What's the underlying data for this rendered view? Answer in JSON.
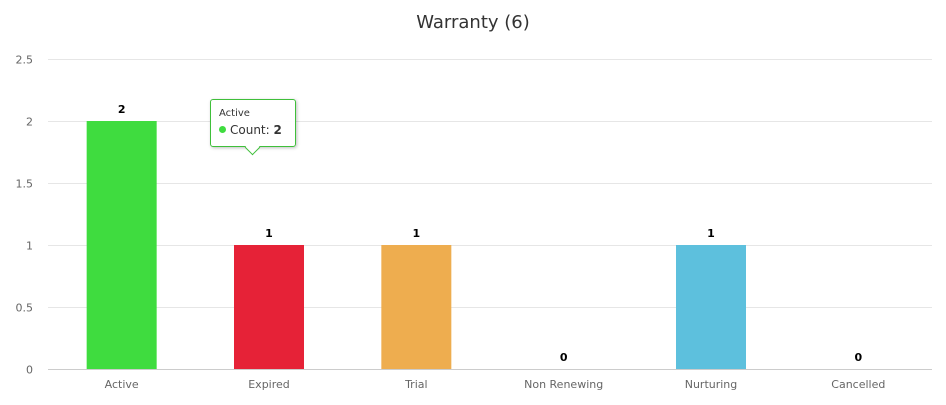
{
  "chart_data": {
    "type": "bar",
    "title": "Warranty (6)",
    "categories": [
      "Active",
      "Expired",
      "Trial",
      "Non Renewing",
      "Nurturing",
      "Cancelled"
    ],
    "values": [
      2,
      1,
      1,
      0,
      1,
      0
    ],
    "colors": [
      "#3fdc3f",
      "#e62237",
      "#eead4f",
      "#5dc0dd",
      "#5dc0dd",
      "#5dc0dd"
    ],
    "ylim": [
      0,
      2.5
    ],
    "yticks": [
      "0",
      "0.5",
      "1",
      "1.5",
      "2",
      "2.5"
    ],
    "grid": true,
    "legend": "none"
  },
  "tooltip": {
    "title": "Active",
    "series_label": "Count: ",
    "value": "2",
    "color": "#3fdc3f"
  }
}
